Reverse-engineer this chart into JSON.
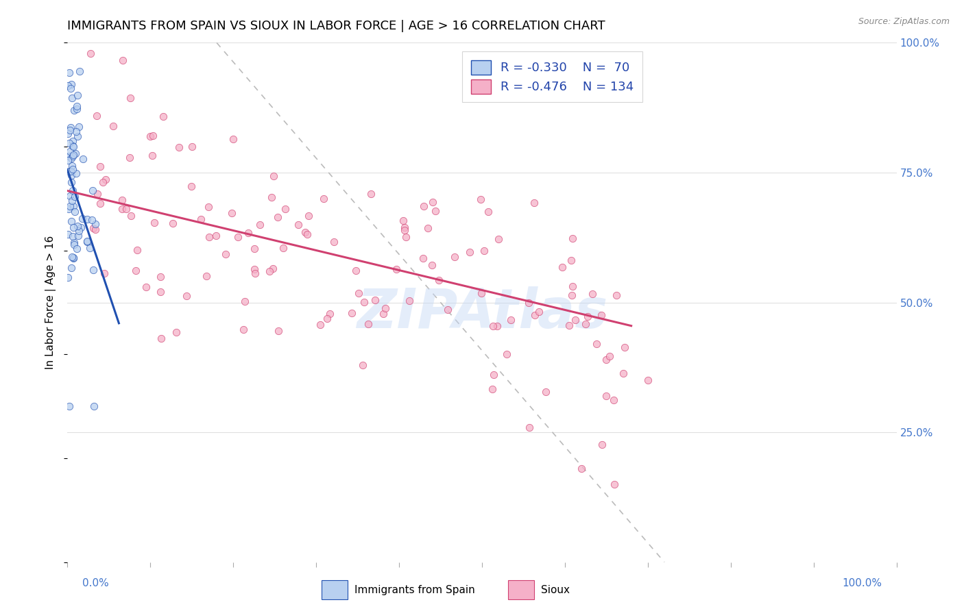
{
  "title": "IMMIGRANTS FROM SPAIN VS SIOUX IN LABOR FORCE | AGE > 16 CORRELATION CHART",
  "source": "Source: ZipAtlas.com",
  "ylabel": "In Labor Force | Age > 16",
  "watermark": "ZIPAtlas",
  "right_yticks": [
    "100.0%",
    "75.0%",
    "50.0%",
    "25.0%"
  ],
  "right_ytick_vals": [
    1.0,
    0.75,
    0.5,
    0.25
  ],
  "legend_spain": {
    "R": -0.33,
    "N": 70,
    "color": "#b8d0f0",
    "line_color": "#2050b0"
  },
  "legend_sioux": {
    "R": -0.476,
    "N": 134,
    "color": "#f5b0c8",
    "line_color": "#d04070"
  },
  "background_color": "#ffffff",
  "grid_color": "#e0e0e0",
  "title_fontsize": 13,
  "axis_label_fontsize": 11,
  "tick_fontsize": 11,
  "scatter_size": 55,
  "scatter_alpha": 0.75,
  "xlim": [
    0.0,
    1.0
  ],
  "ylim": [
    0.0,
    1.0
  ],
  "spain_line": {
    "x0": 0.0,
    "y0": 0.755,
    "x1": 0.062,
    "y1": 0.46
  },
  "sioux_line": {
    "x0": 0.0,
    "y0": 0.715,
    "x1": 0.68,
    "y1": 0.455
  },
  "diag_line": {
    "x0": 0.18,
    "y0": 1.0,
    "x1": 0.72,
    "y1": 0.0
  }
}
